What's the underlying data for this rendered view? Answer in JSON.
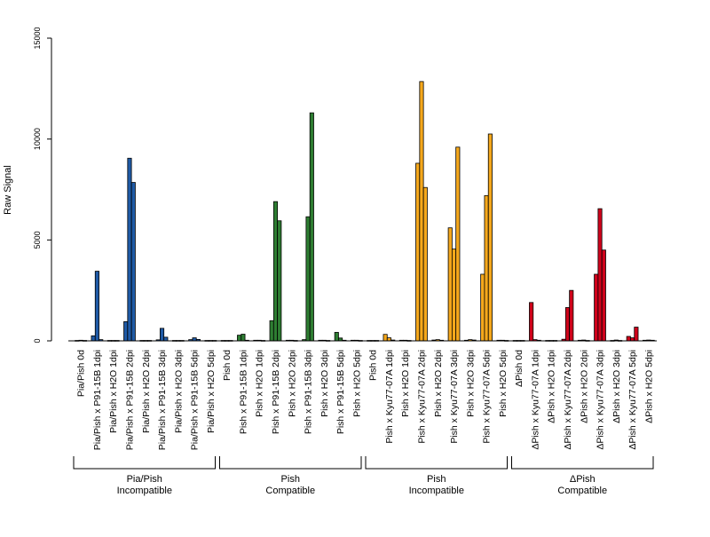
{
  "chart_data": {
    "type": "bar",
    "ylabel": "Raw Signal",
    "xlabel": "",
    "ylim": [
      0,
      15000
    ],
    "yticks": [
      0,
      5000,
      10000,
      15000
    ],
    "categories": [
      "Pia/Pish 0d",
      "Pia/Pish x P91-15B 1dpi",
      "Pia/Pish x H2O 1dpi",
      "Pia/Pish x P91-15B 2dpi",
      "Pia/Pish x H2O 2dpi",
      "Pia/Pish x P91-15B 3dpi",
      "Pia/Pish x H2O 3dpi",
      "Pia/Pish x P91-15B 5dpi",
      "Pia/Pish x H2O 5dpi",
      "Pish 0d",
      "Pish x P91-15B 1dpi",
      "Pish x H2O 1dpi",
      "Pish x P91-15B 2dpi",
      "Pish x H2O 2dpi",
      "Pish x P91-15B 3dpi",
      "Pish x H2O 3dpi",
      "Pish x P91-15B 5dpi",
      "Pish x H2O 5dpi",
      "Pish 0d",
      "Pish x Kyu77-07A 1dpi",
      "Pish x H2O 1dpi",
      "Pish x Kyu77-07A 2dpi",
      "Pish x H2O 2dpi",
      "Pish x Kyu77-07A 3dpi",
      "Pish x H2O 3dpi",
      "Pish x Kyu77-07A 5dpi",
      "Pish x H2O 5dpi",
      "ΔPish 0d",
      "ΔPish x Kyu77-07A 1dpi",
      "ΔPish x H2O 1dpi",
      "ΔPish x Kyu77-07A 2dpi",
      "ΔPish x H2O 2dpi",
      "ΔPish x Kyu77-07A 3dpi",
      "ΔPish x H2O 3dpi",
      "ΔPish x Kyu77-07A 5dpi",
      "ΔPish x H2O 5dpi"
    ],
    "values": [
      [
        20,
        30,
        20
      ],
      [
        250,
        3450,
        60
      ],
      [
        20,
        20,
        20
      ],
      [
        950,
        9050,
        7850
      ],
      [
        20,
        20,
        20
      ],
      [
        50,
        620,
        180
      ],
      [
        20,
        20,
        20
      ],
      [
        60,
        150,
        70
      ],
      [
        20,
        20,
        20
      ],
      [
        20,
        20,
        20
      ],
      [
        280,
        330,
        30
      ],
      [
        30,
        30,
        20
      ],
      [
        1000,
        6900,
        5950
      ],
      [
        30,
        30,
        20
      ],
      [
        60,
        6150,
        11300
      ],
      [
        30,
        30,
        20
      ],
      [
        420,
        140,
        30
      ],
      [
        30,
        30,
        20
      ],
      [
        20,
        20,
        20
      ],
      [
        320,
        150,
        40
      ],
      [
        30,
        30,
        20
      ],
      [
        8800,
        12850,
        7600
      ],
      [
        40,
        60,
        30
      ],
      [
        5600,
        4550,
        9600
      ],
      [
        30,
        60,
        40
      ],
      [
        3300,
        7200,
        10250
      ],
      [
        30,
        30,
        20
      ],
      [
        20,
        20,
        20
      ],
      [
        1900,
        60,
        30
      ],
      [
        20,
        20,
        20
      ],
      [
        80,
        1650,
        2500
      ],
      [
        30,
        40,
        20
      ],
      [
        3300,
        6550,
        4500
      ],
      [
        20,
        40,
        20
      ],
      [
        220,
        150,
        680
      ],
      [
        30,
        40,
        30
      ]
    ],
    "groups": [
      {
        "label_line1": "Pia/Pish",
        "label_line2": "Incompatible",
        "start": 0,
        "end": 8,
        "color": "#1f5aa6"
      },
      {
        "label_line1": "Pish",
        "label_line2": "Compatible",
        "start": 9,
        "end": 17,
        "color": "#2e7d32"
      },
      {
        "label_line1": "Pish",
        "label_line2": "Incompatible",
        "start": 18,
        "end": 26,
        "color": "#f5a81c"
      },
      {
        "label_line1": "ΔPish",
        "label_line2": "Compatible",
        "start": 27,
        "end": 35,
        "color": "#d0021b"
      }
    ],
    "grid": false,
    "legend": "none"
  }
}
